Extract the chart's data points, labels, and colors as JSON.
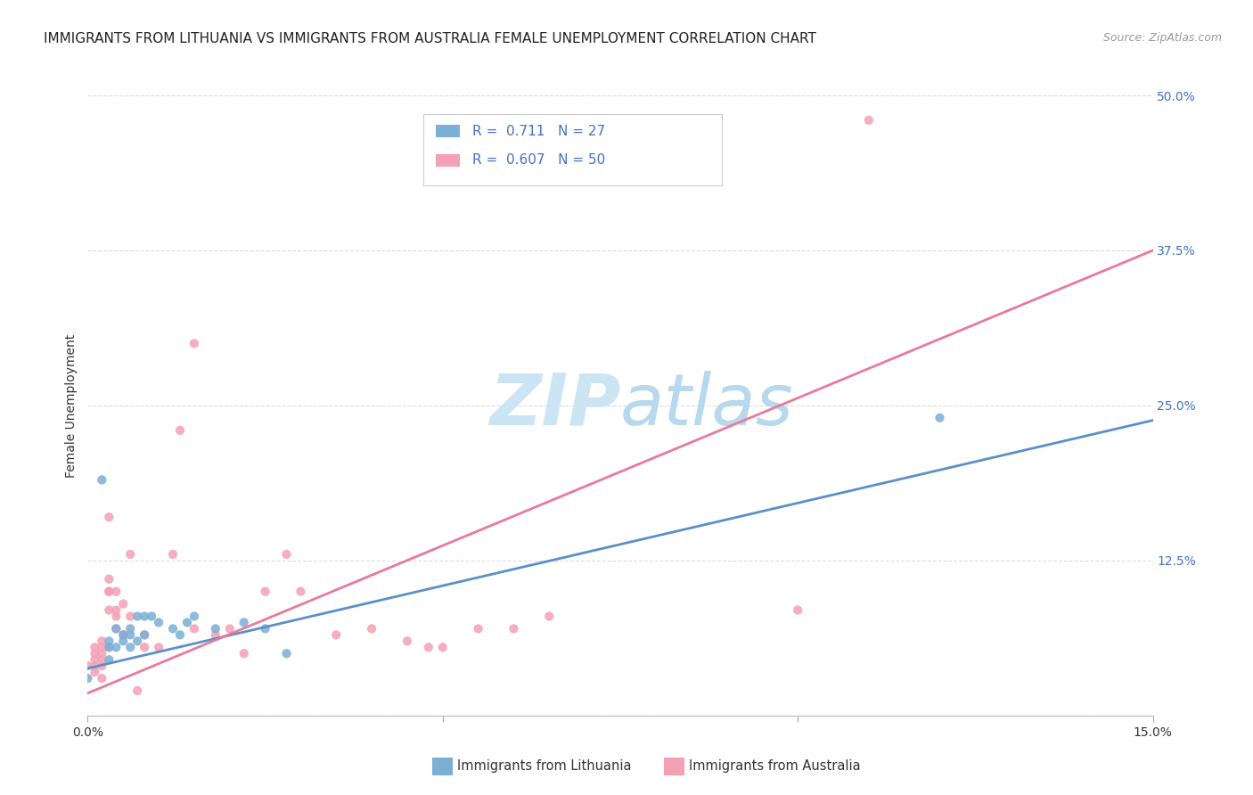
{
  "title": "IMMIGRANTS FROM LITHUANIA VS IMMIGRANTS FROM AUSTRALIA FEMALE UNEMPLOYMENT CORRELATION CHART",
  "source": "Source: ZipAtlas.com",
  "ylabel_label": "Female Unemployment",
  "xlim": [
    0.0,
    0.15
  ],
  "ylim": [
    0.0,
    0.5
  ],
  "legend_r_n": [
    {
      "R": "0.711",
      "N": "27"
    },
    {
      "R": "0.607",
      "N": "50"
    }
  ],
  "lithuania_scatter": [
    [
      0.002,
      0.19
    ],
    [
      0.003,
      0.055
    ],
    [
      0.003,
      0.06
    ],
    [
      0.003,
      0.045
    ],
    [
      0.004,
      0.055
    ],
    [
      0.004,
      0.07
    ],
    [
      0.005,
      0.065
    ],
    [
      0.005,
      0.06
    ],
    [
      0.006,
      0.07
    ],
    [
      0.006,
      0.065
    ],
    [
      0.006,
      0.055
    ],
    [
      0.007,
      0.08
    ],
    [
      0.007,
      0.06
    ],
    [
      0.008,
      0.08
    ],
    [
      0.008,
      0.065
    ],
    [
      0.009,
      0.08
    ],
    [
      0.01,
      0.075
    ],
    [
      0.012,
      0.07
    ],
    [
      0.013,
      0.065
    ],
    [
      0.014,
      0.075
    ],
    [
      0.015,
      0.08
    ],
    [
      0.018,
      0.07
    ],
    [
      0.022,
      0.075
    ],
    [
      0.025,
      0.07
    ],
    [
      0.028,
      0.05
    ],
    [
      0.12,
      0.24
    ],
    [
      0.0,
      0.03
    ]
  ],
  "australia_scatter": [
    [
      0.001,
      0.055
    ],
    [
      0.001,
      0.05
    ],
    [
      0.001,
      0.04
    ],
    [
      0.001,
      0.035
    ],
    [
      0.002,
      0.06
    ],
    [
      0.002,
      0.055
    ],
    [
      0.002,
      0.05
    ],
    [
      0.002,
      0.04
    ],
    [
      0.002,
      0.03
    ],
    [
      0.003,
      0.16
    ],
    [
      0.003,
      0.11
    ],
    [
      0.003,
      0.1
    ],
    [
      0.003,
      0.1
    ],
    [
      0.003,
      0.085
    ],
    [
      0.003,
      0.055
    ],
    [
      0.004,
      0.1
    ],
    [
      0.004,
      0.085
    ],
    [
      0.004,
      0.08
    ],
    [
      0.004,
      0.07
    ],
    [
      0.005,
      0.09
    ],
    [
      0.005,
      0.065
    ],
    [
      0.006,
      0.13
    ],
    [
      0.006,
      0.08
    ],
    [
      0.007,
      0.02
    ],
    [
      0.008,
      0.065
    ],
    [
      0.008,
      0.055
    ],
    [
      0.01,
      0.055
    ],
    [
      0.012,
      0.13
    ],
    [
      0.013,
      0.23
    ],
    [
      0.015,
      0.3
    ],
    [
      0.015,
      0.07
    ],
    [
      0.018,
      0.065
    ],
    [
      0.02,
      0.07
    ],
    [
      0.022,
      0.05
    ],
    [
      0.025,
      0.1
    ],
    [
      0.028,
      0.13
    ],
    [
      0.03,
      0.1
    ],
    [
      0.035,
      0.065
    ],
    [
      0.04,
      0.07
    ],
    [
      0.045,
      0.06
    ],
    [
      0.048,
      0.055
    ],
    [
      0.05,
      0.055
    ],
    [
      0.055,
      0.07
    ],
    [
      0.06,
      0.07
    ],
    [
      0.065,
      0.08
    ],
    [
      0.1,
      0.085
    ],
    [
      0.11,
      0.48
    ],
    [
      0.0,
      0.04
    ],
    [
      0.001,
      0.045
    ],
    [
      0.002,
      0.045
    ]
  ],
  "blue_line": {
    "x": [
      0.0,
      0.15
    ],
    "y": [
      0.038,
      0.238
    ]
  },
  "pink_line": {
    "x": [
      0.0,
      0.15
    ],
    "y": [
      0.018,
      0.375
    ]
  },
  "scatter_color_lithuania": "#7bafd4",
  "scatter_color_australia": "#f4a0b5",
  "scatter_alpha": 0.85,
  "scatter_size": 55,
  "line_color_blue": "#5b8fc9",
  "line_color_pink": "#e87a9a",
  "background_color": "#ffffff",
  "grid_color": "#dddddd",
  "title_fontsize": 11,
  "axis_label_fontsize": 10,
  "tick_fontsize": 10,
  "source_fontsize": 9,
  "watermark_zip_color": "#cce5f5",
  "watermark_atlas_color": "#b8d8ed",
  "watermark_fontsize": 58
}
